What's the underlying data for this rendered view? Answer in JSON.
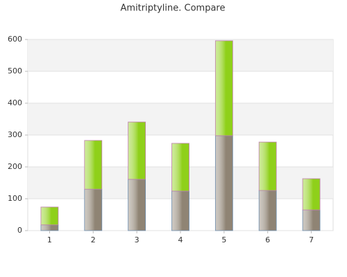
{
  "chart_data": {
    "type": "stacked-bar",
    "title": "Amitriptyline. Compare",
    "categories": [
      "1",
      "2",
      "3",
      "4",
      "5",
      "6",
      "7"
    ],
    "series": [
      {
        "color": "#8f8474",
        "values": [
          18,
          130,
          161,
          124,
          298,
          126,
          65
        ]
      },
      {
        "color": "#8fd01a",
        "values": [
          56,
          153,
          180,
          150,
          298,
          152,
          98
        ]
      }
    ],
    "ylim": [
      0,
      600
    ],
    "yticks": [
      0,
      100,
      200,
      300,
      400,
      500,
      600
    ],
    "grid": true
  }
}
